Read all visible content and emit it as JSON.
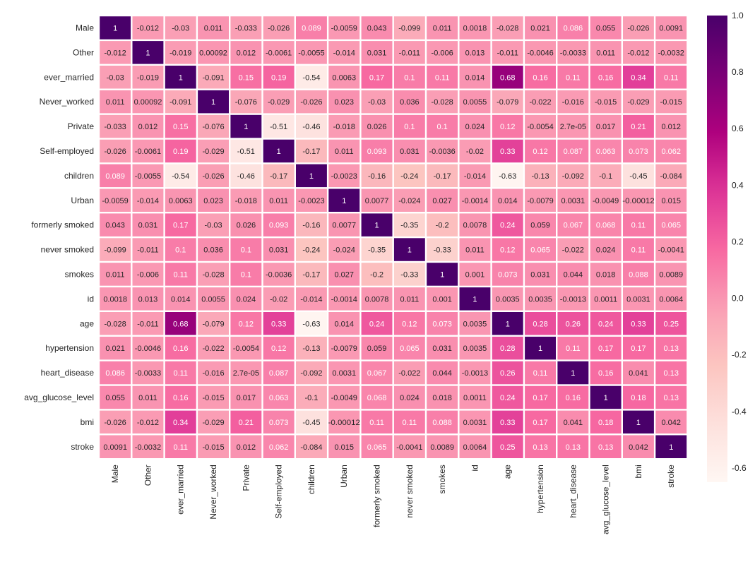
{
  "chart_data": {
    "type": "heatmap",
    "title": "",
    "xlabel": "",
    "ylabel": "",
    "labels": [
      "Male",
      "Other",
      "ever_married",
      "Never_worked",
      "Private",
      "Self-employed",
      "children",
      "Urban",
      "formerly smoked",
      "never smoked",
      "smokes",
      "id",
      "age",
      "hypertension",
      "heart_disease",
      "avg_glucose_level",
      "bmi",
      "stroke"
    ],
    "cell_text": [
      [
        "1",
        "-0.012",
        "-0.03",
        "0.011",
        "-0.033",
        "-0.026",
        "0.089",
        "-0.0059",
        "0.043",
        "-0.099",
        "0.011",
        "0.0018",
        "-0.028",
        "0.021",
        "0.086",
        "0.055",
        "-0.026",
        "0.0091"
      ],
      [
        "-0.012",
        "1",
        "-0.019",
        "0.00092",
        "0.012",
        "-0.0061",
        "-0.0055",
        "-0.014",
        "0.031",
        "-0.011",
        "-0.006",
        "0.013",
        "-0.011",
        "-0.0046",
        "-0.0033",
        "0.011",
        "-0.012",
        "-0.0032"
      ],
      [
        "-0.03",
        "-0.019",
        "1",
        "-0.091",
        "0.15",
        "0.19",
        "-0.54",
        "0.0063",
        "0.17",
        "0.1",
        "0.11",
        "0.014",
        "0.68",
        "0.16",
        "0.11",
        "0.16",
        "0.34",
        "0.11"
      ],
      [
        "0.011",
        "0.00092",
        "-0.091",
        "1",
        "-0.076",
        "-0.029",
        "-0.026",
        "0.023",
        "-0.03",
        "0.036",
        "-0.028",
        "0.0055",
        "-0.079",
        "-0.022",
        "-0.016",
        "-0.015",
        "-0.029",
        "-0.015"
      ],
      [
        "-0.033",
        "0.012",
        "0.15",
        "-0.076",
        "1",
        "-0.51",
        "-0.46",
        "-0.018",
        "0.026",
        "0.1",
        "0.1",
        "0.024",
        "0.12",
        "-0.0054",
        "2.7e-05",
        "0.017",
        "0.21",
        "0.012"
      ],
      [
        "-0.026",
        "-0.0061",
        "0.19",
        "-0.029",
        "-0.51",
        "1",
        "-0.17",
        "0.011",
        "0.093",
        "0.031",
        "-0.0036",
        "-0.02",
        "0.33",
        "0.12",
        "0.087",
        "0.063",
        "0.073",
        "0.062"
      ],
      [
        "0.089",
        "-0.0055",
        "-0.54",
        "-0.026",
        "-0.46",
        "-0.17",
        "1",
        "-0.0023",
        "-0.16",
        "-0.24",
        "-0.17",
        "-0.014",
        "-0.63",
        "-0.13",
        "-0.092",
        "-0.1",
        "-0.45",
        "-0.084"
      ],
      [
        "-0.0059",
        "-0.014",
        "0.0063",
        "0.023",
        "-0.018",
        "0.011",
        "-0.0023",
        "1",
        "0.0077",
        "-0.024",
        "0.027",
        "-0.0014",
        "0.014",
        "-0.0079",
        "0.0031",
        "-0.0049",
        "-0.00012",
        "0.015"
      ],
      [
        "0.043",
        "0.031",
        "0.17",
        "-0.03",
        "0.026",
        "0.093",
        "-0.16",
        "0.0077",
        "1",
        "-0.35",
        "-0.2",
        "0.0078",
        "0.24",
        "0.059",
        "0.067",
        "0.068",
        "0.11",
        "0.065"
      ],
      [
        "-0.099",
        "-0.011",
        "0.1",
        "0.036",
        "0.1",
        "0.031",
        "-0.24",
        "-0.024",
        "-0.35",
        "1",
        "-0.33",
        "0.011",
        "0.12",
        "0.065",
        "-0.022",
        "0.024",
        "0.11",
        "-0.0041"
      ],
      [
        "0.011",
        "-0.006",
        "0.11",
        "-0.028",
        "0.1",
        "-0.0036",
        "-0.17",
        "0.027",
        "-0.2",
        "-0.33",
        "1",
        "0.001",
        "0.073",
        "0.031",
        "0.044",
        "0.018",
        "0.088",
        "0.0089"
      ],
      [
        "0.0018",
        "0.013",
        "0.014",
        "0.0055",
        "0.024",
        "-0.02",
        "-0.014",
        "-0.0014",
        "0.0078",
        "0.011",
        "0.001",
        "1",
        "0.0035",
        "0.0035",
        "-0.0013",
        "0.0011",
        "0.0031",
        "0.0064"
      ],
      [
        "-0.028",
        "-0.011",
        "0.68",
        "-0.079",
        "0.12",
        "0.33",
        "-0.63",
        "0.014",
        "0.24",
        "0.12",
        "0.073",
        "0.0035",
        "1",
        "0.28",
        "0.26",
        "0.24",
        "0.33",
        "0.25"
      ],
      [
        "0.021",
        "-0.0046",
        "0.16",
        "-0.022",
        "-0.0054",
        "0.12",
        "-0.13",
        "-0.0079",
        "0.059",
        "0.065",
        "0.031",
        "0.0035",
        "0.28",
        "1",
        "0.11",
        "0.17",
        "0.17",
        "0.13"
      ],
      [
        "0.086",
        "-0.0033",
        "0.11",
        "-0.016",
        "2.7e-05",
        "0.087",
        "-0.092",
        "0.0031",
        "0.067",
        "-0.022",
        "0.044",
        "-0.0013",
        "0.26",
        "0.11",
        "1",
        "0.16",
        "0.041",
        "0.13"
      ],
      [
        "0.055",
        "0.011",
        "0.16",
        "-0.015",
        "0.017",
        "0.063",
        "-0.1",
        "-0.0049",
        "0.068",
        "0.024",
        "0.018",
        "0.0011",
        "0.24",
        "0.17",
        "0.16",
        "1",
        "0.18",
        "0.13"
      ],
      [
        "-0.026",
        "-0.012",
        "0.34",
        "-0.029",
        "0.21",
        "0.073",
        "-0.45",
        "-0.00012",
        "0.11",
        "0.11",
        "0.088",
        "0.0031",
        "0.33",
        "0.17",
        "0.041",
        "0.18",
        "1",
        "0.042"
      ],
      [
        "0.0091",
        "-0.0032",
        "0.11",
        "-0.015",
        "0.012",
        "0.062",
        "-0.084",
        "0.015",
        "0.065",
        "-0.0041",
        "0.0089",
        "0.0064",
        "0.25",
        "0.13",
        "0.13",
        "0.13",
        "0.042",
        "1"
      ]
    ],
    "colorbar": {
      "range": [
        -0.65,
        1.0
      ],
      "ticks": [
        "1.0",
        "0.8",
        "0.6",
        "0.4",
        "0.2",
        "0.0",
        "-0.2",
        "-0.4",
        "-0.6"
      ],
      "tick_values": [
        1.0,
        0.8,
        0.6,
        0.4,
        0.2,
        0.0,
        -0.2,
        -0.4,
        -0.6
      ]
    },
    "colormap": [
      "#fff7f3",
      "#fde0dd",
      "#fcc5c0",
      "#fa9fb5",
      "#f768a1",
      "#dd3497",
      "#ae017e",
      "#7a0177",
      "#49006a"
    ],
    "grid_line_color": "#ffffff",
    "annot_light_color": "#ffffff",
    "annot_dark_color": "#262626"
  }
}
